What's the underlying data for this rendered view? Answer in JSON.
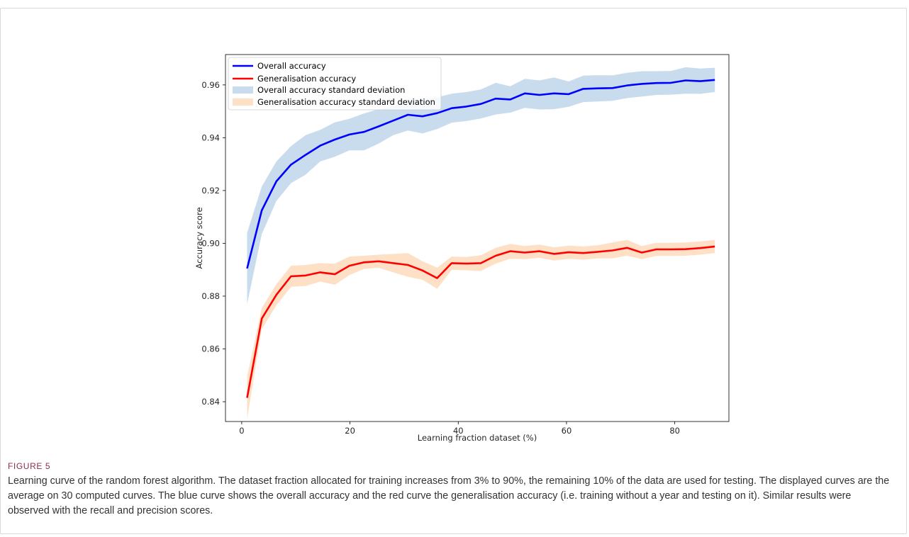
{
  "figure": {
    "label": "FIGURE 5",
    "caption": "Learning curve of the random forest algorithm. The dataset fraction allocated for training increases from 3% to 90%, the remaining 10% of the data are used for testing. The displayed curves are the average on 30 computed curves. The blue curve shows the overall accuracy and the red curve the generalisation accuracy (i.e. training without a year and testing on it). Similar results were observed with the recall and precision scores."
  },
  "chart_data": {
    "type": "line",
    "xlabel": "Learning fraction dataset (%)",
    "ylabel": "Accuracy score",
    "xlim": [
      -3,
      90
    ],
    "ylim": [
      0.8325,
      0.9715
    ],
    "xticks": [
      0,
      20,
      40,
      60,
      80
    ],
    "yticks": [
      0.84,
      0.86,
      0.88,
      0.9,
      0.92,
      0.94,
      0.96
    ],
    "ytick_labels": [
      "0.84",
      "0.86",
      "0.88",
      "0.90",
      "0.92",
      "0.94",
      "0.96"
    ],
    "grid": false,
    "legend_position": "upper-left",
    "x": [
      1,
      3.7,
      6.4,
      9.1,
      11.8,
      14.5,
      17.2,
      19.9,
      22.6,
      25.3,
      28,
      30.7,
      33.4,
      36.1,
      38.8,
      41.5,
      44.2,
      46.9,
      49.6,
      52.3,
      55,
      57.7,
      60.4,
      63.1,
      65.8,
      68.5,
      71.2,
      73.9,
      76.6,
      79.3,
      82,
      84.7,
      87.4
    ],
    "series": [
      {
        "name": "Overall accuracy",
        "color": "#0000ff",
        "values": [
          0.8905,
          0.9125,
          0.9235,
          0.9298,
          0.9335,
          0.937,
          0.9393,
          0.9412,
          0.9422,
          0.9443,
          0.9465,
          0.9487,
          0.9481,
          0.9493,
          0.9512,
          0.9518,
          0.9528,
          0.9548,
          0.9545,
          0.9568,
          0.9562,
          0.9568,
          0.9565,
          0.9585,
          0.9587,
          0.9588,
          0.9598,
          0.9604,
          0.9607,
          0.9608,
          0.9617,
          0.9614,
          0.9619
        ],
        "std": [
          0.0135,
          0.009,
          0.0075,
          0.007,
          0.0075,
          0.006,
          0.0065,
          0.006,
          0.007,
          0.0065,
          0.0055,
          0.006,
          0.0065,
          0.006,
          0.0055,
          0.0055,
          0.0055,
          0.006,
          0.005,
          0.0055,
          0.0055,
          0.006,
          0.0048,
          0.005,
          0.005,
          0.0048,
          0.0048,
          0.0048,
          0.0045,
          0.0045,
          0.005,
          0.0048,
          0.0046
        ]
      },
      {
        "name": "Generalisation accuracy",
        "color": "#ff0000",
        "values": [
          0.8415,
          0.8715,
          0.8805,
          0.8875,
          0.8878,
          0.889,
          0.8883,
          0.8915,
          0.8928,
          0.8932,
          0.8925,
          0.8918,
          0.8897,
          0.8868,
          0.8925,
          0.8923,
          0.8925,
          0.8953,
          0.897,
          0.8965,
          0.897,
          0.896,
          0.8966,
          0.8963,
          0.8968,
          0.8973,
          0.8983,
          0.8965,
          0.8977,
          0.8977,
          0.8978,
          0.8982,
          0.8988
        ],
        "std": [
          0.008,
          0.004,
          0.004,
          0.004,
          0.004,
          0.0035,
          0.004,
          0.0035,
          0.0025,
          0.0025,
          0.0035,
          0.0045,
          0.0035,
          0.004,
          0.0025,
          0.0025,
          0.003,
          0.003,
          0.0028,
          0.0025,
          0.0025,
          0.0025,
          0.0025,
          0.0025,
          0.0025,
          0.003,
          0.003,
          0.0025,
          0.0025,
          0.0025,
          0.0025,
          0.0025,
          0.0025
        ]
      }
    ],
    "bands": [
      {
        "name": "Overall accuracy standard deviation",
        "color": "#c9dcee"
      },
      {
        "name": "Generalisation accuracy standard deviation",
        "color": "#fde0c5"
      }
    ]
  }
}
